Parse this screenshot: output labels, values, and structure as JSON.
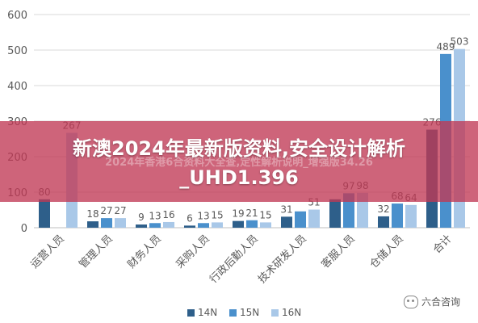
{
  "chart_data": {
    "type": "bar",
    "categories": [
      "运营人员",
      "管理人员",
      "财务人员",
      "采购人员",
      "行政后勤人员",
      "技术研发人员",
      "客服人员",
      "仓储人员",
      "合计"
    ],
    "series": [
      {
        "name": "14N",
        "color": "#2E5F8A",
        "values": [
          80,
          18,
          9,
          6,
          19,
          31,
          80,
          32,
          276
        ]
      },
      {
        "name": "15N",
        "color": "#4A90CC",
        "values": [
          null,
          27,
          13,
          13,
          21,
          46,
          97,
          68,
          489
        ]
      },
      {
        "name": "16N",
        "color": "#A9C8E8",
        "values": [
          267,
          27,
          16,
          15,
          15,
          51,
          98,
          64,
          503
        ]
      }
    ],
    "data_labels": [
      [
        "80",
        "",
        "267"
      ],
      [
        "18",
        "27",
        "27"
      ],
      [
        "9",
        "13",
        "16"
      ],
      [
        "6",
        "13",
        "15"
      ],
      [
        "19",
        "21",
        "15"
      ],
      [
        "31",
        "",
        "51"
      ],
      [
        "",
        "97",
        "98"
      ],
      [
        "32",
        "68",
        "64"
      ],
      [
        "276",
        "489",
        "503"
      ]
    ],
    "yticks": [
      0,
      100,
      200,
      300,
      400,
      500,
      600
    ],
    "ylim": [
      0,
      600
    ],
    "grid": true,
    "legend": "bottom"
  },
  "overlay": {
    "title_line1": "新澳2024年最新版资料,安全设计解析",
    "title_line2": "_UHD1.396",
    "subtitle": "2024年香港6合资料大全查,定性解析说明_增强版34.26"
  },
  "watermark": {
    "text": "六合咨询",
    "icon": "wechat-icon"
  }
}
